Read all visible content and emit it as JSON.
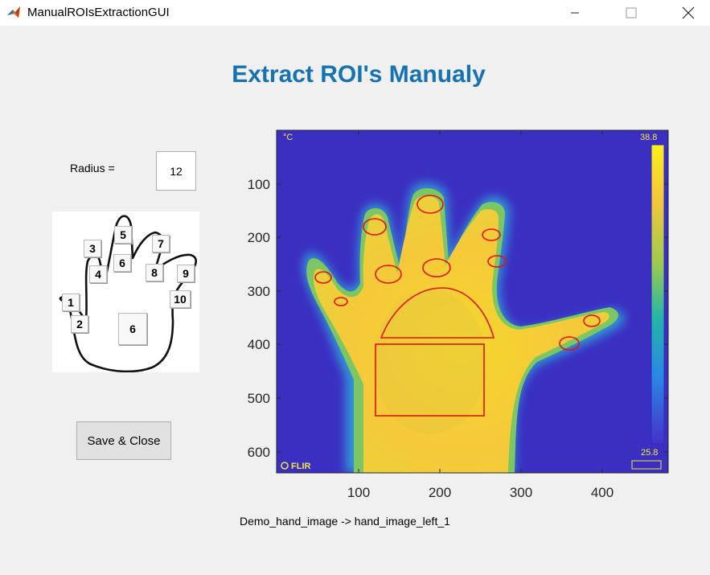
{
  "window": {
    "title": "ManualROIsExtractionGUI"
  },
  "header": {
    "title": "Extract ROI's Manualy"
  },
  "radius": {
    "label": "Radius =",
    "value": "12"
  },
  "hand_map": {
    "buttons": [
      {
        "id": "3",
        "label": "3"
      },
      {
        "id": "5",
        "label": "5"
      },
      {
        "id": "7",
        "label": "7"
      },
      {
        "id": "6a",
        "label": "6"
      },
      {
        "id": "4",
        "label": "4"
      },
      {
        "id": "8",
        "label": "8"
      },
      {
        "id": "9",
        "label": "9"
      },
      {
        "id": "1",
        "label": "1"
      },
      {
        "id": "10",
        "label": "10"
      },
      {
        "id": "2",
        "label": "2"
      },
      {
        "id": "6b",
        "label": "6"
      }
    ]
  },
  "save_button": {
    "label": "Save & Close"
  },
  "image_axes": {
    "x_ticks": [
      "100",
      "200",
      "300",
      "400"
    ],
    "y_ticks": [
      "100",
      "200",
      "300",
      "400",
      "500",
      "600"
    ],
    "colorbar": {
      "max": "38.8",
      "min": "25.8"
    },
    "overlay": {
      "unit": "°C",
      "brand": "FLIR"
    }
  },
  "footer": {
    "caption": "Demo_hand_image -> hand_image_left_1"
  }
}
